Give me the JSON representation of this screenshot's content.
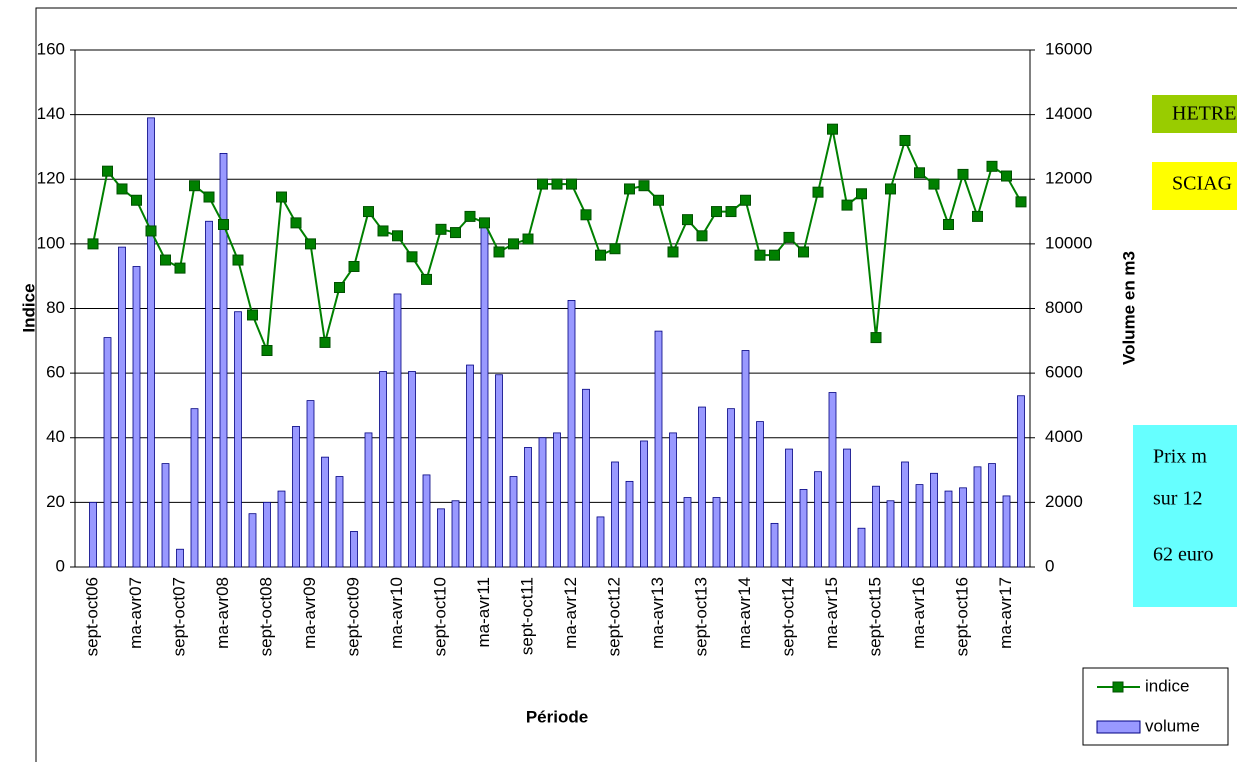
{
  "chart_data": {
    "type": "combo",
    "x_label": "Période",
    "y_label": "Indice",
    "y2_label": "Volume en m3",
    "categories": [
      "sept-oct06",
      null,
      null,
      "ma-avr07",
      null,
      null,
      "sept-oct07",
      null,
      null,
      "ma-avr08",
      null,
      null,
      "sept-oct08",
      null,
      null,
      "ma-avr09",
      null,
      null,
      "sept-oct09",
      null,
      null,
      "ma-avr10",
      null,
      null,
      "sept-oct10",
      null,
      null,
      "ma-avr11",
      null,
      null,
      "sept-oct11",
      null,
      null,
      "ma-avr12",
      null,
      null,
      "sept-oct12",
      null,
      null,
      "ma-avr13",
      null,
      null,
      "sept-oct13",
      null,
      null,
      "ma-avr14",
      null,
      null,
      "sept-oct14",
      null,
      null,
      "ma-avr15",
      null,
      null,
      "sept-oct15",
      null,
      null,
      "ma-avr16",
      null,
      null,
      "sept-oct16",
      null,
      null,
      "ma-avr17",
      null
    ],
    "series": [
      {
        "name": "indice",
        "type": "line",
        "color": "#008000",
        "values": [
          100,
          122.5,
          117,
          113.5,
          104,
          95,
          92.5,
          118,
          114.5,
          106,
          95,
          78,
          67,
          114.5,
          106.5,
          100,
          69.5,
          86.5,
          93,
          110,
          104,
          102.5,
          96,
          89,
          104.5,
          103.5,
          108.5,
          106.5,
          97.5,
          100,
          101.5,
          118.5,
          118.5,
          118.5,
          109,
          96.5,
          98.5,
          117,
          118,
          113.5,
          97.5,
          107.5,
          102.5,
          110,
          110,
          113.5,
          96.5,
          96.5,
          102,
          97.5,
          116,
          135.5,
          112,
          115.5,
          71,
          117,
          132,
          122,
          118.5,
          106,
          121.5,
          108.5,
          124,
          121,
          113
        ]
      },
      {
        "name": "volume",
        "type": "bar",
        "axis": "y2",
        "color": "#9999ff",
        "values": [
          2000,
          7100,
          9900,
          9300,
          13900,
          3200,
          550,
          4900,
          10700,
          12800,
          7900,
          1650,
          2000,
          2350,
          4350,
          5150,
          3400,
          2800,
          1100,
          4150,
          6050,
          8450,
          6050,
          2850,
          1800,
          2050,
          6250,
          10700,
          5950,
          2800,
          3700,
          4000,
          4150,
          8250,
          5500,
          1550,
          3250,
          2650,
          3900,
          7300,
          4150,
          2150,
          4950,
          2150,
          4900,
          6700,
          4500,
          1350,
          3650,
          2400,
          2950,
          5400,
          3650,
          1200,
          2500,
          2050,
          3250,
          2550,
          2900,
          2350,
          2450,
          3100,
          3200,
          2200,
          5300
        ]
      }
    ],
    "ylim": [
      0,
      160
    ],
    "yticks": [
      0,
      20,
      40,
      60,
      80,
      100,
      120,
      140,
      160
    ],
    "y2lim": [
      0,
      16000
    ],
    "y2ticks": [
      0,
      2000,
      4000,
      6000,
      8000,
      10000,
      12000,
      14000,
      16000
    ],
    "grid": true,
    "legend": "bottom-right",
    "annotations": [
      {
        "text": "HETRE",
        "color": "#99cc00"
      },
      {
        "text": "SCIAG",
        "color": "#ffff00"
      },
      {
        "lines": [
          "Prix m",
          "sur 12",
          "62 euro"
        ],
        "color": "#66ffff"
      }
    ]
  }
}
